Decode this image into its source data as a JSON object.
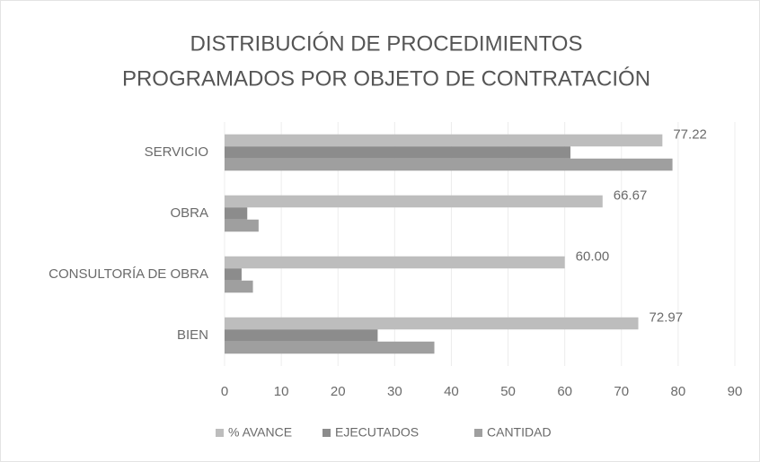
{
  "chart_data": {
    "type": "hbar",
    "title": [
      "DISTRIBUCIÓN DE PROCEDIMIENTOS",
      "PROGRAMADOS POR OBJETO DE CONTRATACIÓN"
    ],
    "categories": [
      "SERVICIO",
      "OBRA",
      "CONSULTORÍA DE OBRA",
      "BIEN"
    ],
    "series": [
      {
        "name": "% AVANCE",
        "color": "#bdbdbd",
        "values": [
          77.22,
          66.67,
          60,
          72.97
        ],
        "value_labels": [
          "77.22",
          "66.67",
          "60.00",
          "72.97"
        ]
      },
      {
        "name": "EJECUTADOS",
        "color": "#8c8c8c",
        "values": [
          61,
          4,
          3,
          27
        ]
      },
      {
        "name": "CANTIDAD",
        "color": "#9f9f9f",
        "values": [
          79,
          6,
          5,
          37
        ]
      }
    ],
    "xlim": [
      0,
      90
    ],
    "xticks": [
      0,
      10,
      20,
      30,
      40,
      50,
      60,
      70,
      80,
      90
    ],
    "grid": true
  }
}
